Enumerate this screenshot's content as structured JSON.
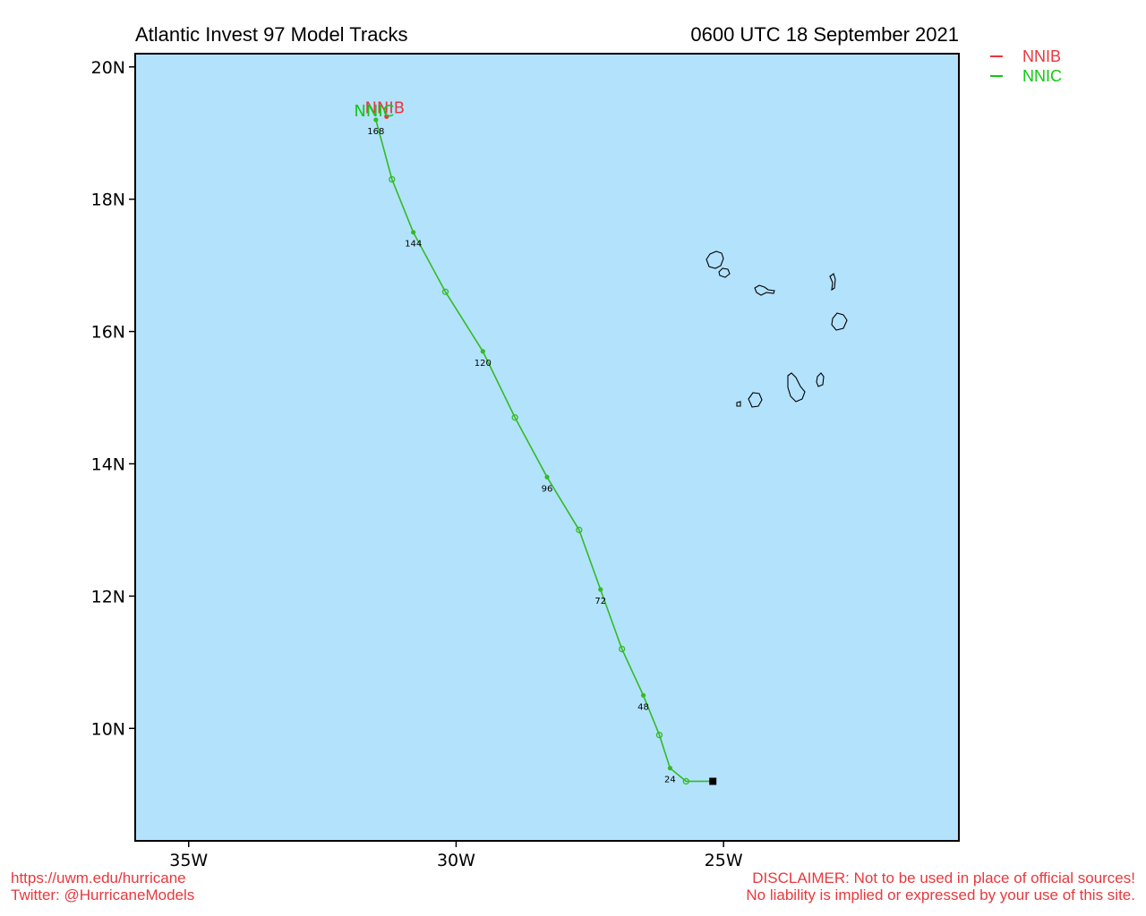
{
  "header": {
    "title": "Atlantic Invest 97 Model Tracks",
    "datetime": "0600 UTC 18 September 2021"
  },
  "map": {
    "lon_range": [
      -36,
      -20.6
    ],
    "lat_range": [
      8.3,
      20.2
    ],
    "ocean_color": "#b3e2fd",
    "land_outline_color": "#000000",
    "lat_ticks": [
      {
        "value": 20,
        "label": "20N"
      },
      {
        "value": 18,
        "label": "18N"
      },
      {
        "value": 16,
        "label": "16N"
      },
      {
        "value": 14,
        "label": "14N"
      },
      {
        "value": 12,
        "label": "12N"
      },
      {
        "value": 10,
        "label": "10N"
      }
    ],
    "lon_ticks": [
      {
        "value": -35,
        "label": "35W"
      },
      {
        "value": -30,
        "label": "30W"
      },
      {
        "value": -25,
        "label": "25W"
      }
    ],
    "current_position": {
      "lat": 9.2,
      "lon": -25.2
    }
  },
  "legend": [
    {
      "name": "NNIB",
      "color": "#e8383d"
    },
    {
      "name": "NNIC",
      "color": "#12c812"
    }
  ],
  "tracks": [
    {
      "name": "NNIC",
      "color": "#33bb22",
      "label_color": "#12c812",
      "points": [
        {
          "h": 0,
          "lat": 9.2,
          "lon": -25.2
        },
        {
          "h": 12,
          "lat": 9.2,
          "lon": -25.7
        },
        {
          "h": 24,
          "lat": 9.4,
          "lon": -26.0
        },
        {
          "h": 36,
          "lat": 9.9,
          "lon": -26.2
        },
        {
          "h": 48,
          "lat": 10.5,
          "lon": -26.5
        },
        {
          "h": 60,
          "lat": 11.2,
          "lon": -26.9
        },
        {
          "h": 72,
          "lat": 12.1,
          "lon": -27.3
        },
        {
          "h": 84,
          "lat": 13.0,
          "lon": -27.7
        },
        {
          "h": 96,
          "lat": 13.8,
          "lon": -28.3
        },
        {
          "h": 108,
          "lat": 14.7,
          "lon": -28.9
        },
        {
          "h": 120,
          "lat": 15.7,
          "lon": -29.5
        },
        {
          "h": 132,
          "lat": 16.6,
          "lon": -30.2
        },
        {
          "h": 144,
          "lat": 17.5,
          "lon": -30.8
        },
        {
          "h": 156,
          "lat": 18.3,
          "lon": -31.2
        },
        {
          "h": 168,
          "lat": 19.2,
          "lon": -31.5
        }
      ],
      "hour_labels": [
        "24",
        "48",
        "72",
        "96",
        "120",
        "144",
        "168"
      ]
    },
    {
      "name": "NNIB",
      "color": "#e8383d",
      "label_color": "#e8383d",
      "points": [
        {
          "h": 168,
          "lat": 19.25,
          "lon": -31.3
        }
      ],
      "hour_labels": []
    }
  ],
  "footer": {
    "url": "https://uwm.edu/hurricane",
    "twitter": "Twitter: @HurricaneModels",
    "disclaimer_1": "DISCLAIMER: Not to be used in place of official sources!",
    "disclaimer_2": "No liability is implied or expressed by your use of this site."
  }
}
